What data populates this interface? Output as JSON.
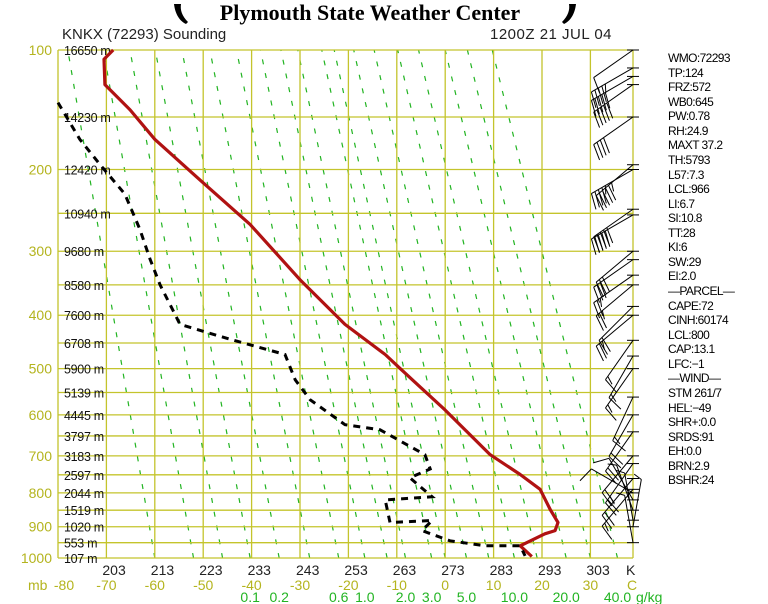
{
  "header": {
    "title": "Plymouth State Weather Center",
    "station": "KNKX (72293) Sounding",
    "time": "1200Z 21 JUL 04"
  },
  "colors": {
    "grid": "#c4c42c",
    "axis_text": "#b4b41e",
    "temperature": "#b01212",
    "dewpoint": "#000000",
    "mixing": "#22b422"
  },
  "stats": [
    "WMO:72293",
    "TP:124",
    "FRZ:572",
    "WB0:645",
    "PW:0.78",
    "RH:24.9",
    "MAXT 37.2",
    "TH:5793",
    "L57:7.3",
    "LCL:966",
    "LI:6.7",
    "SI:10.8",
    "TT:28",
    "KI:6",
    "SW:29",
    "EI:2.0",
    "—PARCEL—",
    "CAPE:72",
    "CINH:60174",
    "LCL:800",
    "CAP:13.1",
    "LFC:−1",
    "—WIND—",
    "STM 261/7",
    "HEL:−49",
    "SHR+:0.0",
    "SRDS:91",
    "EH:0.0",
    "BRN:2.9",
    "BSHR:24"
  ],
  "chart_data": {
    "type": "line",
    "title": "KNKX (72293) Sounding",
    "xlabel": "C",
    "ylabel": "mb",
    "xlim": [
      -80,
      38.7
    ],
    "ylim": [
      1000,
      100
    ],
    "grid": true,
    "pressure_labels": [
      "100",
      "200",
      "300",
      "400",
      "500",
      "600",
      "700",
      "800",
      "900",
      "1000"
    ],
    "height_levels": [
      {
        "p": 100,
        "label": "16650 m"
      },
      {
        "p": 150,
        "label": "14230 m"
      },
      {
        "p": 200,
        "label": "12420 m"
      },
      {
        "p": 250,
        "label": "10940 m"
      },
      {
        "p": 300,
        "label": "9680 m"
      },
      {
        "p": 350,
        "label": "8580 m"
      },
      {
        "p": 400,
        "label": "7600 m"
      },
      {
        "p": 450,
        "label": "6708 m"
      },
      {
        "p": 500,
        "label": "5900 m"
      },
      {
        "p": 550,
        "label": "5139 m"
      },
      {
        "p": 600,
        "label": "4445 m"
      },
      {
        "p": 650,
        "label": "3797 m"
      },
      {
        "p": 700,
        "label": "3183 m"
      },
      {
        "p": 750,
        "label": "2597 m"
      },
      {
        "p": 800,
        "label": "2044 m"
      },
      {
        "p": 850,
        "label": "1519 m"
      },
      {
        "p": 900,
        "label": "1020 m"
      },
      {
        "p": 950,
        "label": "553 m"
      },
      {
        "p": 1000,
        "label": "107 m"
      }
    ],
    "celsius_ticks": [
      "-80",
      "-70",
      "-60",
      "-50",
      "-40",
      "-30",
      "-20",
      "-10",
      "0",
      "10",
      "20",
      "30"
    ],
    "celsius_unit": "C",
    "pressure_unit": "mb",
    "kelvin_ticks": [
      "203",
      "213",
      "223",
      "233",
      "243",
      "253",
      "263",
      "273",
      "283",
      "293",
      "303"
    ],
    "kelvin_unit": "K",
    "mixing_ratio_ticks": [
      {
        "label": "0.1",
        "t": -40.3
      },
      {
        "label": "0.2",
        "t": -34.3
      },
      {
        "label": "0.6",
        "t": -22
      },
      {
        "label": "1.0",
        "t": -16.6
      },
      {
        "label": "2.0",
        "t": -8.2
      },
      {
        "label": "3.0",
        "t": -2.8
      },
      {
        "label": "5.0",
        "t": 4.4
      },
      {
        "label": "10.0",
        "t": 14.3
      },
      {
        "label": "20.0",
        "t": 25
      },
      {
        "label": "40.0",
        "t": 35.6
      }
    ],
    "mixing_ratio_unit": "g/kg",
    "series": [
      {
        "name": "temperature",
        "points": [
          [
            100,
            -68.6
          ],
          [
            106,
            -70.5
          ],
          [
            124,
            -70.3
          ],
          [
            144,
            -65.1
          ],
          [
            170,
            -60
          ],
          [
            211,
            -50.7
          ],
          [
            264,
            -40.3
          ],
          [
            342,
            -30
          ],
          [
            416,
            -20.7
          ],
          [
            472,
            -12.4
          ],
          [
            500,
            -9.3
          ],
          [
            589,
            0
          ],
          [
            697,
            9.3
          ],
          [
            749,
            15.5
          ],
          [
            790,
            19.6
          ],
          [
            848,
            21.7
          ],
          [
            887,
            23.3
          ],
          [
            912,
            22.7
          ],
          [
            922,
            20.6
          ],
          [
            960,
            15.5
          ],
          [
            995,
            17.9
          ]
        ]
      },
      {
        "name": "dewpoint",
        "points": [
          [
            138,
            -80
          ],
          [
            170,
            -75.5
          ],
          [
            195,
            -71.3
          ],
          [
            227,
            -66.2
          ],
          [
            270,
            -63.1
          ],
          [
            311,
            -61
          ],
          [
            350,
            -58.9
          ],
          [
            399,
            -55.8
          ],
          [
            416,
            -54.8
          ],
          [
            443,
            -44.5
          ],
          [
            472,
            -33.1
          ],
          [
            523,
            -31
          ],
          [
            566,
            -27.9
          ],
          [
            623,
            -20.7
          ],
          [
            635,
            -13.5
          ],
          [
            697,
            -4.2
          ],
          [
            734,
            -3.1
          ],
          [
            758,
            -7.3
          ],
          [
            811,
            -2.7
          ],
          [
            820,
            -12.4
          ],
          [
            887,
            -11.4
          ],
          [
            881,
            -2.7
          ],
          [
            912,
            -4.8
          ],
          [
            944,
            1
          ],
          [
            960,
            8.2
          ],
          [
            960,
            15.5
          ],
          [
            993,
            16.5
          ]
        ]
      }
    ],
    "winds": [
      [
        100,
        235,
        10
      ],
      [
        112,
        240,
        45
      ],
      [
        118,
        240,
        50
      ],
      [
        124,
        235,
        50
      ],
      [
        150,
        235,
        40
      ],
      [
        195,
        230,
        55
      ],
      [
        200,
        240,
        45
      ],
      [
        245,
        235,
        50
      ],
      [
        252,
        240,
        50
      ],
      [
        300,
        230,
        30
      ],
      [
        312,
        235,
        30
      ],
      [
        335,
        235,
        25
      ],
      [
        350,
        230,
        25
      ],
      [
        385,
        225,
        20
      ],
      [
        400,
        230,
        25
      ],
      [
        445,
        215,
        15
      ],
      [
        475,
        210,
        15
      ],
      [
        500,
        215,
        15
      ],
      [
        560,
        205,
        15
      ],
      [
        600,
        210,
        20
      ],
      [
        640,
        215,
        20
      ],
      [
        700,
        220,
        20
      ],
      [
        720,
        215,
        25
      ],
      [
        760,
        220,
        20
      ],
      [
        790,
        220,
        15
      ],
      [
        800,
        300,
        10
      ],
      [
        820,
        330,
        10
      ],
      [
        850,
        340,
        5
      ],
      [
        880,
        350,
        5
      ],
      [
        900,
        10,
        5
      ],
      [
        950,
        350,
        5
      ]
    ]
  }
}
